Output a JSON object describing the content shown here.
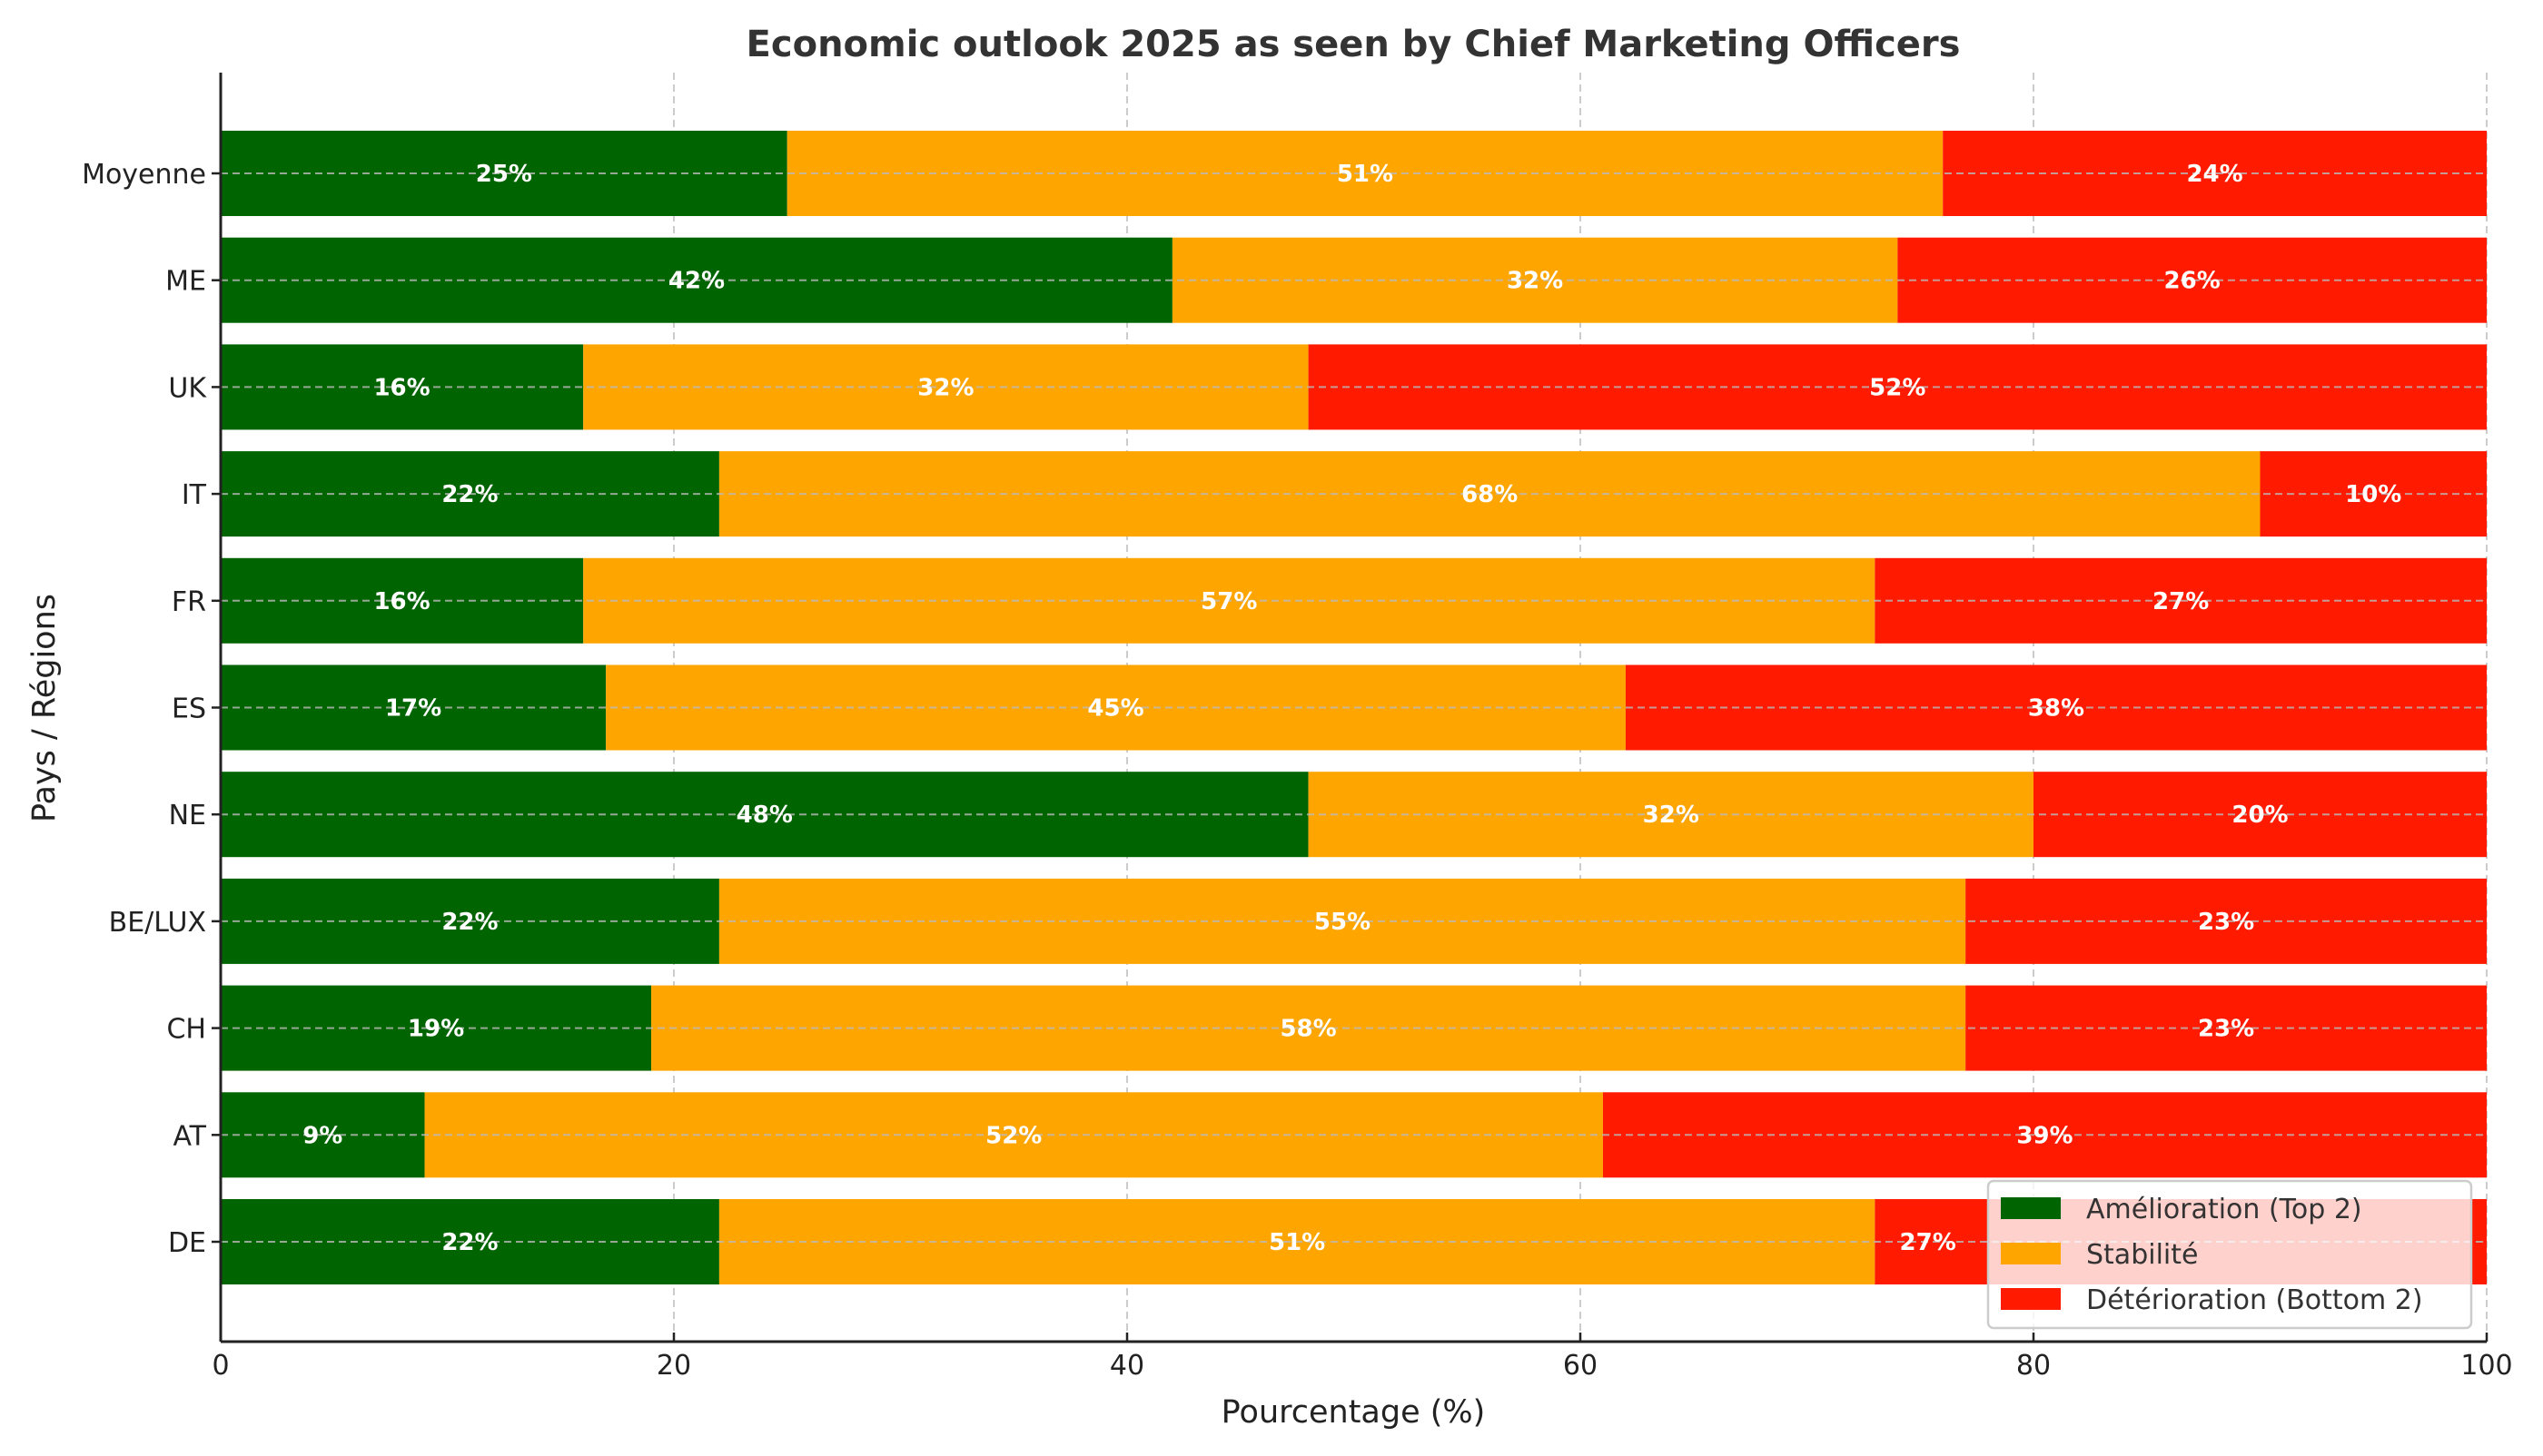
{
  "chart_data": {
    "type": "bar",
    "orientation": "horizontal",
    "stacked": true,
    "title": "Economic outlook 2025 as seen by Chief Marketing Officers",
    "xlabel": "Pourcentage (%)",
    "ylabel": "Pays / Régions",
    "xlim": [
      0,
      100
    ],
    "xticks": [
      0,
      20,
      40,
      60,
      80,
      100
    ],
    "grid": true,
    "legend_position": "bottom-right",
    "categories": [
      "DE",
      "AT",
      "CH",
      "BE/LUX",
      "NE",
      "ES",
      "FR",
      "IT",
      "UK",
      "ME",
      "Moyenne"
    ],
    "series": [
      {
        "name": "Amélioration (Top 2)",
        "color": "#006400",
        "values": [
          22,
          9,
          19,
          22,
          48,
          17,
          16,
          22,
          16,
          42,
          25
        ]
      },
      {
        "name": "Stabilité",
        "color": "#FFA500",
        "values": [
          51,
          52,
          58,
          55,
          32,
          45,
          57,
          68,
          32,
          32,
          51
        ]
      },
      {
        "name": "Détérioration (Bottom 2)",
        "color": "#FF1A00",
        "values": [
          27,
          39,
          23,
          23,
          20,
          38,
          27,
          10,
          52,
          26,
          24
        ]
      }
    ],
    "data_label_format": "{v}%"
  }
}
